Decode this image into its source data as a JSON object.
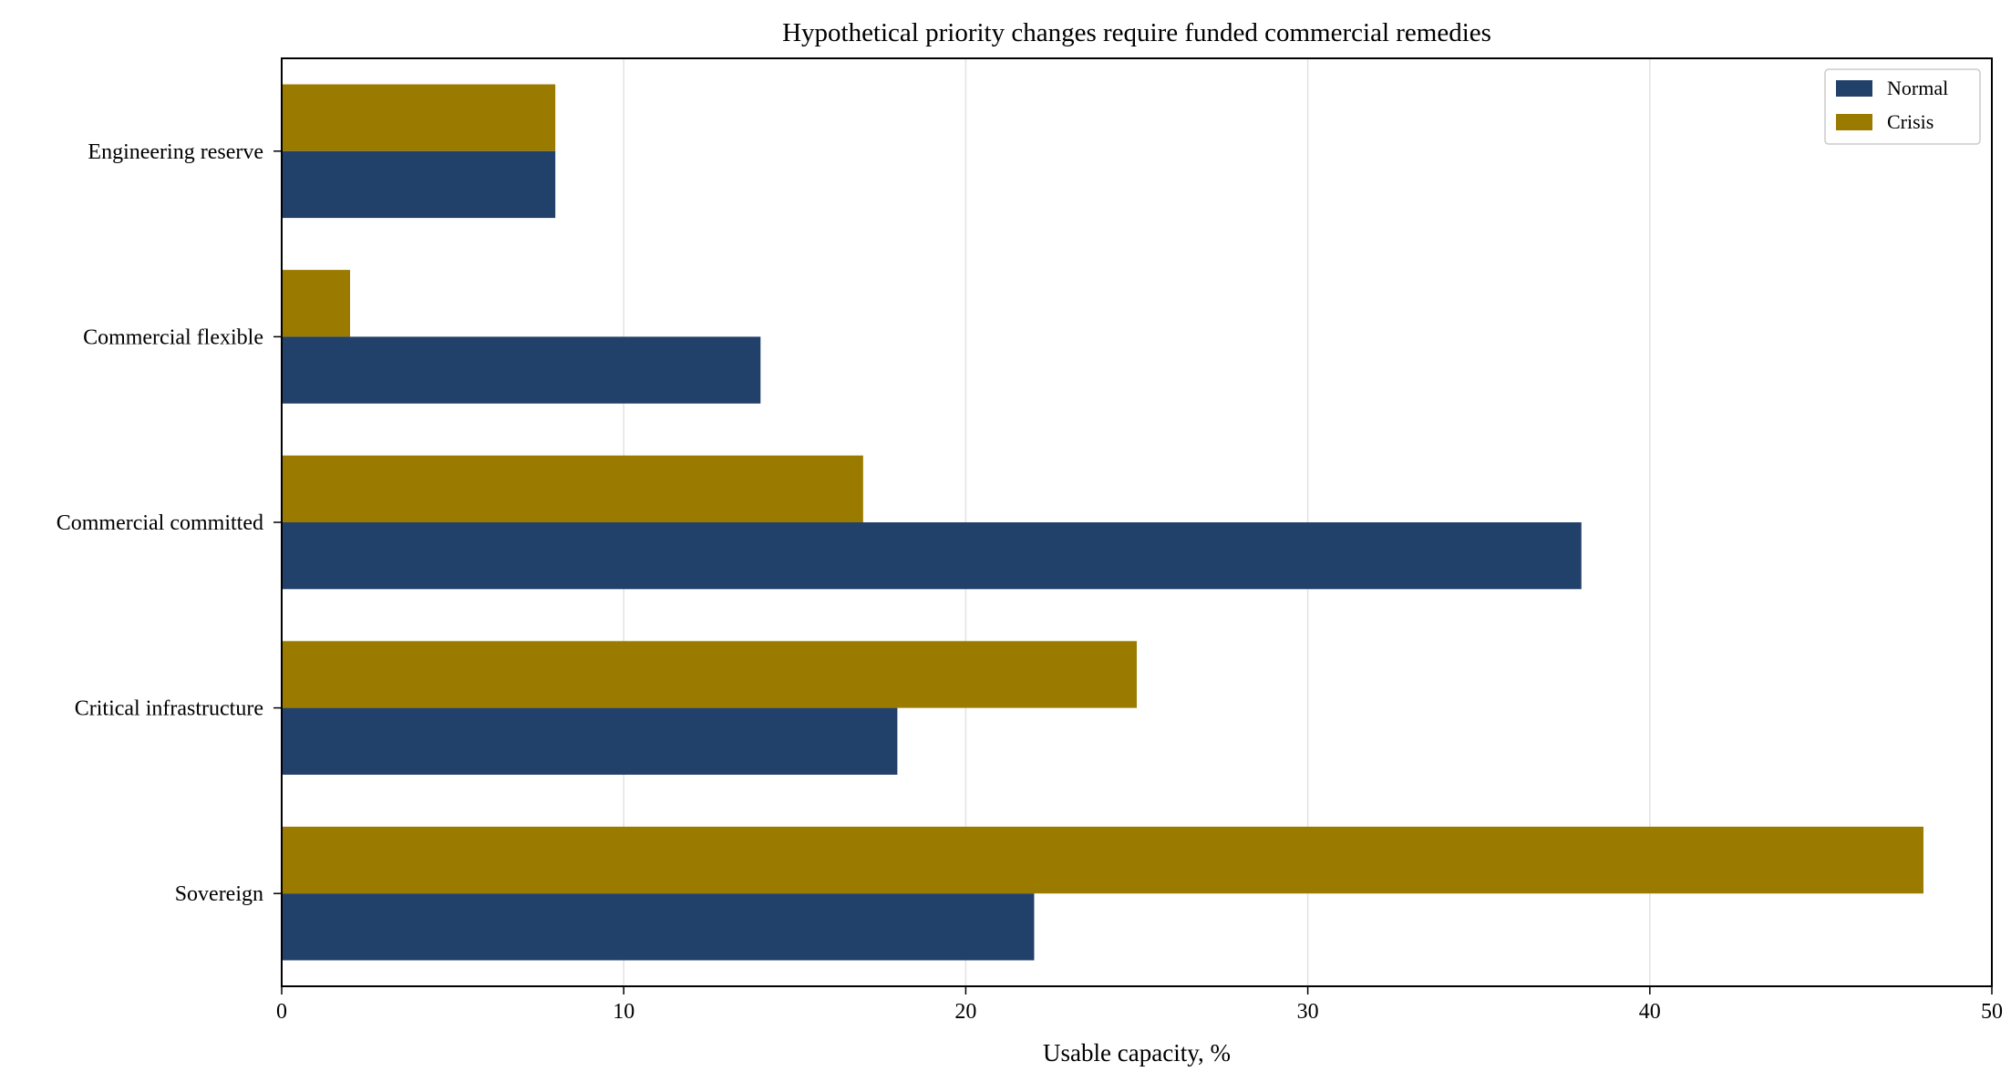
{
  "chart_data": {
    "type": "bar",
    "orientation": "horizontal",
    "title": "Hypothetical priority changes require funded commercial remedies",
    "xlabel": "Usable capacity, %",
    "ylabel": "",
    "categories": [
      "Sovereign",
      "Critical infrastructure",
      "Commercial committed",
      "Commercial flexible",
      "Engineering reserve"
    ],
    "series": [
      {
        "name": "Normal",
        "values": [
          22,
          18,
          38,
          14,
          8
        ],
        "color": "#21406a"
      },
      {
        "name": "Crisis",
        "values": [
          48,
          25,
          17,
          2,
          8
        ],
        "color": "#9a7b00"
      }
    ],
    "xlim": [
      0,
      50
    ],
    "xticks": [
      0,
      10,
      20,
      30,
      40,
      50
    ],
    "xtick_labels": [
      "0",
      "10",
      "20",
      "30",
      "40",
      "50"
    ],
    "grid": "vertical",
    "legend_position": "top-right"
  }
}
